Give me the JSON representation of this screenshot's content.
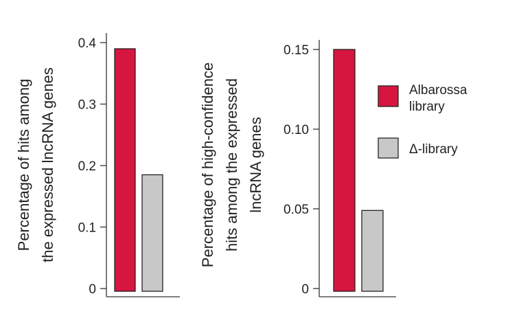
{
  "chart_data": [
    {
      "type": "bar",
      "ylabel_lines": [
        "Percentage of hits among",
        "the expressed lncRNA genes"
      ],
      "ylim": [
        0,
        0.4
      ],
      "yticks": [
        0,
        0.1,
        0.2,
        0.3,
        0.4
      ],
      "ytick_labels": [
        "0",
        "0.1",
        "0.2",
        "0.3",
        "0.4"
      ],
      "series": [
        {
          "values": [
            0.39
          ]
        },
        {
          "values": [
            0.185
          ]
        }
      ],
      "grid": false
    },
    {
      "type": "bar",
      "ylabel_lines": [
        "Percentage of high-confidence",
        "hits among the expressed",
        "lncRNA genes"
      ],
      "ylim": [
        0,
        0.15
      ],
      "yticks": [
        0,
        0.05,
        0.1,
        0.15
      ],
      "ytick_labels": [
        "0",
        "0.05",
        "0.10",
        "0.15"
      ],
      "series": [
        {
          "values": [
            0.15
          ]
        },
        {
          "values": [
            0.049
          ]
        }
      ],
      "grid": false
    }
  ],
  "legend": {
    "placement": "right",
    "items": [
      {
        "label_lines": [
          "Albarossa",
          "library"
        ],
        "color": "#d6163f"
      },
      {
        "label_lines": [
          "Δ-library"
        ],
        "color": "#c8c8c8"
      }
    ]
  }
}
